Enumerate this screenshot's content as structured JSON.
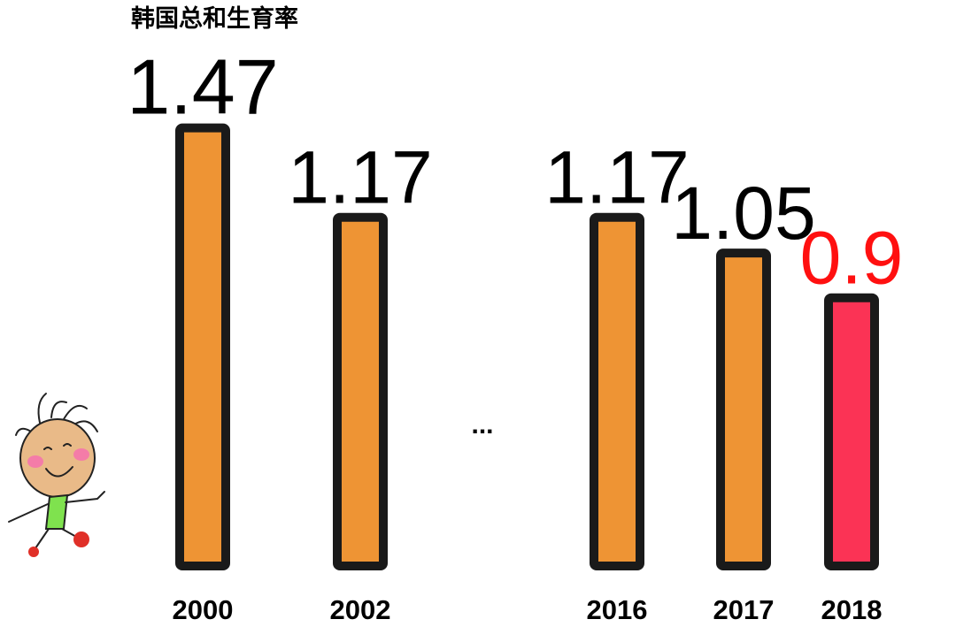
{
  "chart_data": {
    "type": "bar",
    "title": "韩国总和生育率",
    "categories": [
      "2000",
      "2002",
      "2016",
      "2017",
      "2018"
    ],
    "values": [
      1.47,
      1.17,
      1.17,
      1.05,
      0.9
    ],
    "value_labels": [
      "1.47",
      "1.17",
      "1.17",
      "1.05",
      "0.9"
    ],
    "gap_marker": "...",
    "ylim": [
      0,
      1.5
    ],
    "grid": false,
    "colors": {
      "bar": "#EE9434",
      "highlight_bar": "#FB3355",
      "highlight_label": "#FF1010",
      "outline": "#1A1A1A",
      "text": "#000000"
    },
    "highlight_index": 4
  },
  "decoration": {
    "icon": "cartoon-child-icon"
  }
}
